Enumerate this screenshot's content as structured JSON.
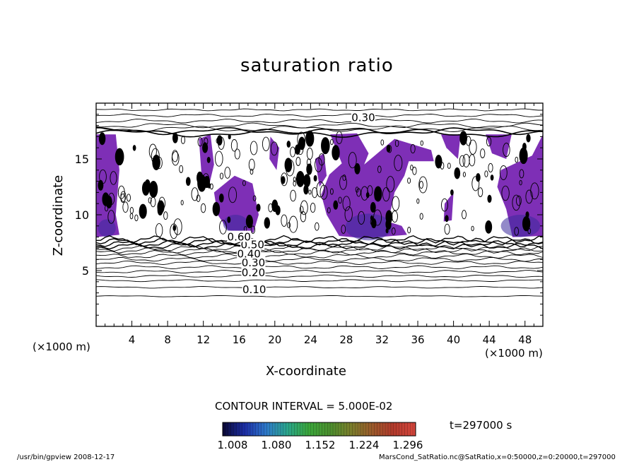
{
  "chart_data": {
    "type": "heatmap",
    "title": "saturation ratio",
    "xlabel": "X-coordinate",
    "ylabel": "Z-coordinate",
    "x_unit": "(×1000 m)",
    "y_unit": "(×1000 m)",
    "xlim": [
      0,
      50
    ],
    "ylim": [
      0,
      20
    ],
    "x_ticks": [
      4,
      8,
      12,
      16,
      20,
      24,
      28,
      32,
      36,
      40,
      44,
      48
    ],
    "y_ticks": [
      5,
      10,
      15
    ],
    "contour_interval_label": "CONTOUR INTERVAL = 5.000E-02",
    "contour_labels": [
      {
        "text": "0.30",
        "x": 29.9,
        "z": 18.7
      },
      {
        "text": "0.10",
        "x": 17.7,
        "z": 3.3
      },
      {
        "text": "0.20",
        "x": 17.6,
        "z": 4.8
      },
      {
        "text": "0.30",
        "x": 17.6,
        "z": 5.7
      },
      {
        "text": "0.40",
        "x": 17.1,
        "z": 6.5
      },
      {
        "text": "0.50",
        "x": 17.5,
        "z": 7.3
      },
      {
        "text": "0.60",
        "x": 16.0,
        "z": 8.0
      }
    ],
    "colorbar": {
      "ticks": [
        "1.008",
        "1.080",
        "1.152",
        "1.224",
        "1.296"
      ],
      "colors": [
        "#0b0a3a",
        "#1d2fa8",
        "#2e79c9",
        "#2aa58b",
        "#3aa63b",
        "#4b8f2e",
        "#7a7e2c",
        "#9a5a2b",
        "#b23a2c",
        "#d4463c"
      ]
    },
    "supersaturated_color": "#7e2fb6",
    "time_label": "t=297000 s"
  },
  "footer": {
    "left": "/usr/bin/gpview   2008-12-17",
    "right": "MarsCond_SatRatio.nc@SatRatio,x=0:50000,z=0:20000,t=297000"
  }
}
